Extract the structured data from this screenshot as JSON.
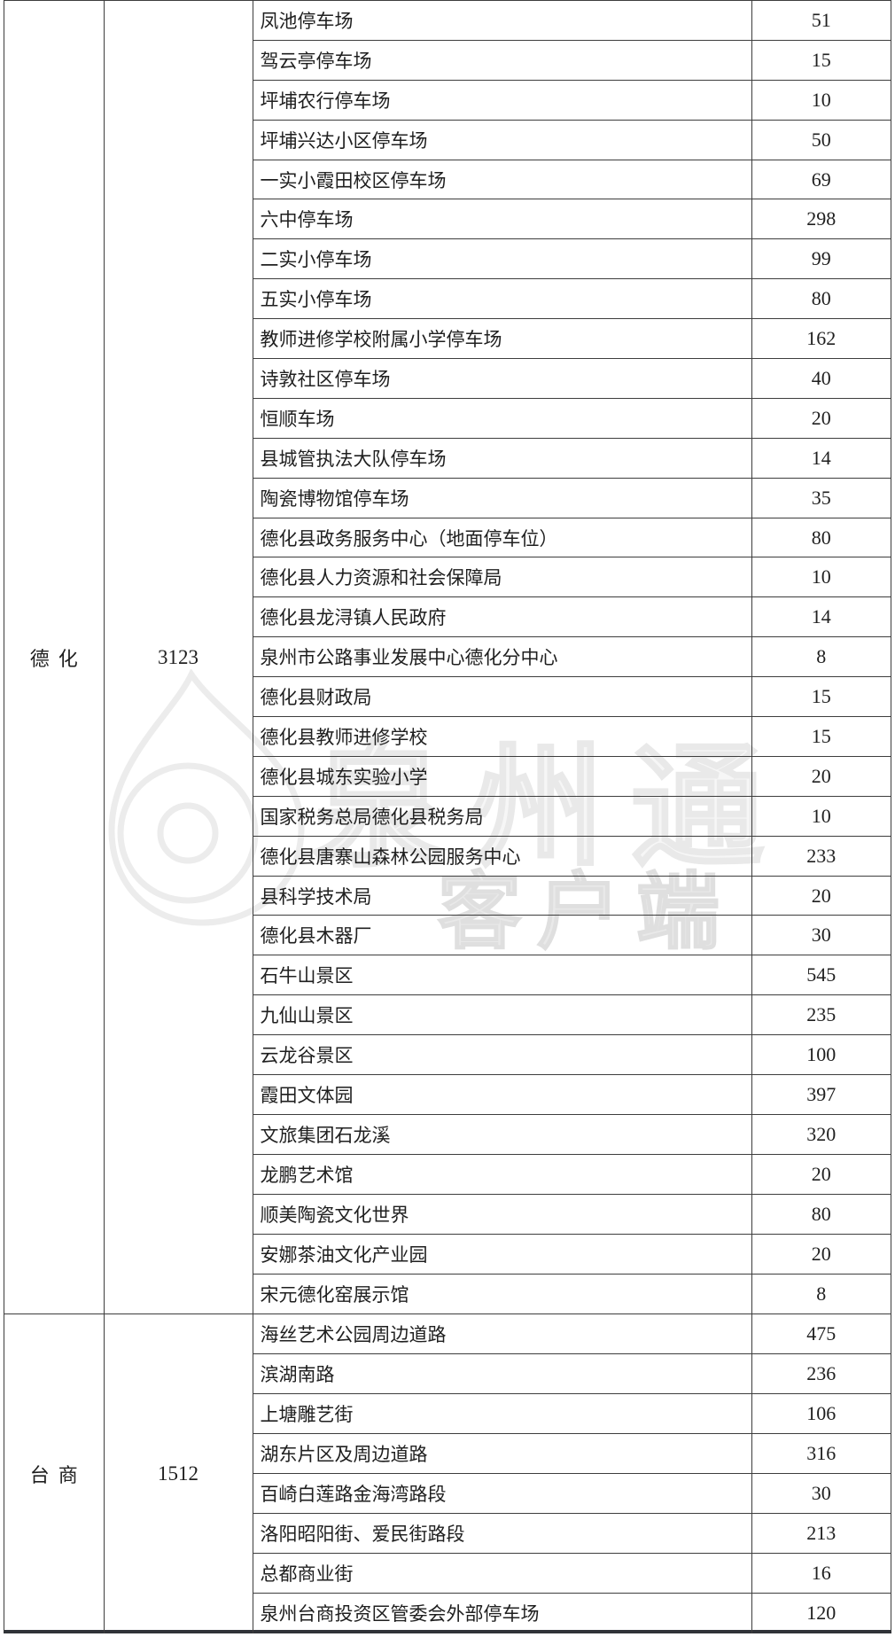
{
  "table": {
    "sections": [
      {
        "region": "德化",
        "total": "3123",
        "rows": [
          {
            "name": "凤池停车场",
            "count": "51"
          },
          {
            "name": "驾云亭停车场",
            "count": "15"
          },
          {
            "name": "坪埔农行停车场",
            "count": "10"
          },
          {
            "name": "坪埔兴达小区停车场",
            "count": "50"
          },
          {
            "name": "一实小霞田校区停车场",
            "count": "69"
          },
          {
            "name": "六中停车场",
            "count": "298"
          },
          {
            "name": "二实小停车场",
            "count": "99"
          },
          {
            "name": "五实小停车场",
            "count": "80"
          },
          {
            "name": "教师进修学校附属小学停车场",
            "count": "162"
          },
          {
            "name": "诗敦社区停车场",
            "count": "40"
          },
          {
            "name": "恒顺车场",
            "count": "20"
          },
          {
            "name": "县城管执法大队停车场",
            "count": "14"
          },
          {
            "name": "陶瓷博物馆停车场",
            "count": "35"
          },
          {
            "name": "德化县政务服务中心（地面停车位）",
            "count": "80"
          },
          {
            "name": "德化县人力资源和社会保障局",
            "count": "10"
          },
          {
            "name": "德化县龙浔镇人民政府",
            "count": "14"
          },
          {
            "name": "泉州市公路事业发展中心德化分中心",
            "count": "8"
          },
          {
            "name": "德化县财政局",
            "count": "15"
          },
          {
            "name": "德化县教师进修学校",
            "count": "15"
          },
          {
            "name": "德化县城东实验小学",
            "count": "20"
          },
          {
            "name": "国家税务总局德化县税务局",
            "count": "10"
          },
          {
            "name": "德化县唐寨山森林公园服务中心",
            "count": "233"
          },
          {
            "name": "县科学技术局",
            "count": "20"
          },
          {
            "name": "德化县木器厂",
            "count": "30"
          },
          {
            "name": "石牛山景区",
            "count": "545"
          },
          {
            "name": "九仙山景区",
            "count": "235"
          },
          {
            "name": "云龙谷景区",
            "count": "100"
          },
          {
            "name": "霞田文体园",
            "count": "397"
          },
          {
            "name": "文旅集团石龙溪",
            "count": "320"
          },
          {
            "name": "龙鹏艺术馆",
            "count": "20"
          },
          {
            "name": "顺美陶瓷文化世界",
            "count": "80"
          },
          {
            "name": "安娜茶油文化产业园",
            "count": "20"
          },
          {
            "name": "宋元德化窑展示馆",
            "count": "8"
          }
        ]
      },
      {
        "region": "台商",
        "total": "1512",
        "rows": [
          {
            "name": "海丝艺术公园周边道路",
            "count": "475"
          },
          {
            "name": "滨湖南路",
            "count": "236"
          },
          {
            "name": "上塘雕艺街",
            "count": "106"
          },
          {
            "name": "湖东片区及周边道路",
            "count": "316"
          },
          {
            "name": "百崎白莲路金海湾路段",
            "count": "30"
          },
          {
            "name": "洛阳昭阳街、爱民街路段",
            "count": "213"
          },
          {
            "name": "总都商业街",
            "count": "16"
          },
          {
            "name": "泉州台商投资区管委会外部停车场",
            "count": "120"
          }
        ]
      }
    ]
  },
  "watermark": {
    "logo_icon": "quanzhou-tong-drop-logo",
    "title": "泉州通",
    "subtitle": "客户端"
  },
  "colors": {
    "border": "#3d3d3d",
    "bottom_border": "#303338",
    "text": "#1f1f1f",
    "watermark_stroke": "#e9e9e9",
    "background": "#ffffff"
  }
}
